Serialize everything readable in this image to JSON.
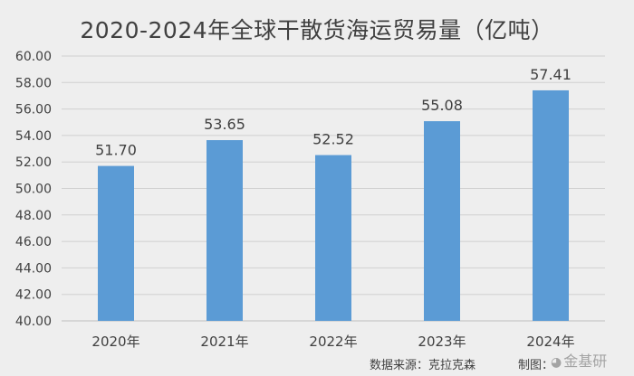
{
  "chart_data": {
    "type": "bar",
    "title": "2020-2024年全球干散货海运贸易量（亿吨）",
    "categories": [
      "2020年",
      "2021年",
      "2022年",
      "2023年",
      "2024年"
    ],
    "values": [
      51.7,
      53.65,
      52.52,
      55.08,
      57.41
    ],
    "value_labels": [
      "51.70",
      "53.65",
      "52.52",
      "55.08",
      "57.41"
    ],
    "ylim": [
      40,
      60
    ],
    "yticks": [
      "40.00",
      "42.00",
      "44.00",
      "46.00",
      "48.00",
      "50.00",
      "52.00",
      "54.00",
      "56.00",
      "58.00",
      "60.00"
    ],
    "grid": true,
    "bar_color": "#5b9bd5",
    "grid_color": "#d0d0d0",
    "text_color": "#404040"
  },
  "footer": {
    "source": "数据来源：克拉克森",
    "credit": "制图：",
    "watermark": "金基研"
  }
}
